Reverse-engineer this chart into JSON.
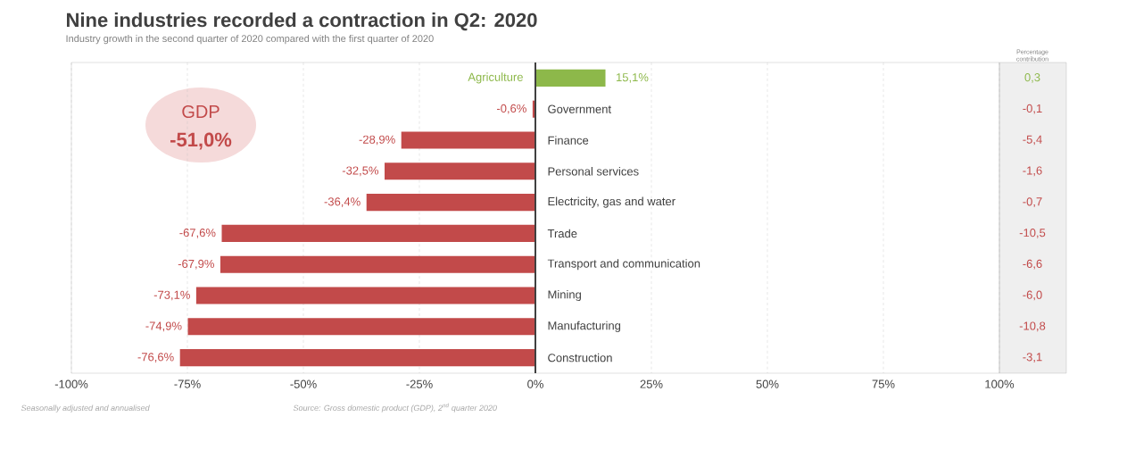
{
  "chart_data": {
    "type": "bar",
    "orientation": "horizontal",
    "title": "Nine industries recorded a contraction in Q2: 2020",
    "subtitle": "Industry growth in the second quarter of 2020 compared with the first quarter of 2020",
    "categories": [
      "Agriculture",
      "Government",
      "Finance",
      "Personal services",
      "Electricity, gas and water",
      "Trade",
      "Transport and communication",
      "Mining",
      "Manufacturing",
      "Construction"
    ],
    "values": [
      15.1,
      -0.6,
      -28.9,
      -32.5,
      -36.4,
      -67.6,
      -67.9,
      -73.1,
      -74.9,
      -76.6
    ],
    "value_labels": [
      "15,1%",
      "-0,6%",
      "-28,9%",
      "-32,5%",
      "-36,4%",
      "-67,6%",
      "-67,9%",
      "-73,1%",
      "-74,9%",
      "-76,6%"
    ],
    "colors": [
      "#8db84a",
      "#c24a4a",
      "#c24a4a",
      "#c24a4a",
      "#c24a4a",
      "#c24a4a",
      "#c24a4a",
      "#c24a4a",
      "#c24a4a",
      "#c24a4a"
    ],
    "xlim": [
      -100,
      100
    ],
    "xticks": [
      {
        "value": -100,
        "label": "-100%"
      },
      {
        "value": -75,
        "label": "-75%"
      },
      {
        "value": -50,
        "label": "-50%"
      },
      {
        "value": -25,
        "label": "-25%"
      },
      {
        "value": 0,
        "label": "0%"
      },
      {
        "value": 25,
        "label": "25%"
      },
      {
        "value": 50,
        "label": "50%"
      },
      {
        "value": 75,
        "label": "75%"
      },
      {
        "value": 100,
        "label": "100%"
      }
    ],
    "grid": "x",
    "annotations": [
      "Percentage contribution",
      "0,3",
      "-0,1",
      "-5,4",
      "-1,6",
      "-0,7",
      "-10,5",
      "-6,6",
      "-6,0",
      "-10,8",
      "-3,1",
      "GDP",
      "-51,0%",
      "*Seasonally adjusted and annualised*",
      "*Source: Gross domestic product (GDP), 2$^{nd}$ quarter 2020*"
    ]
  }
}
